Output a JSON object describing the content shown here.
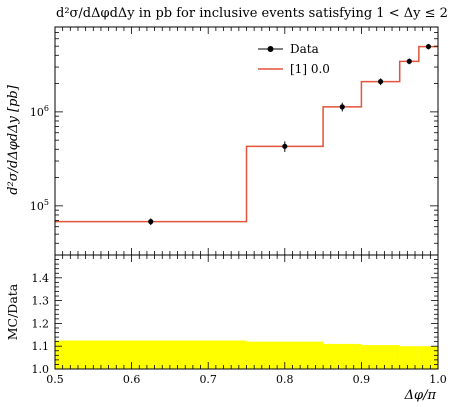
{
  "chart_data": [
    {
      "type": "line",
      "title": "d²σ/dΔφdΔy in pb for inclusive events satisfying 1 < Δy ≤ 2",
      "ylabel": "d²σ/dΔφdΔy [pb]",
      "xlim": [
        0.5,
        1.0
      ],
      "ylim": [
        30000,
        8000000
      ],
      "yscale": "log",
      "y_ticks": [
        {
          "value": 100000,
          "base": "10",
          "exp": "5"
        },
        {
          "value": 1000000,
          "base": "10",
          "exp": "6"
        }
      ],
      "legend_position": "top-right",
      "series": [
        {
          "name": "Data",
          "style": "points-with-errorbars",
          "color": "#000000",
          "points": [
            {
              "x": 0.625,
              "y": 68000,
              "err": 5500
            },
            {
              "x": 0.8,
              "y": 430000,
              "err": 55000
            },
            {
              "x": 0.875,
              "y": 1130000,
              "err": 120000
            },
            {
              "x": 0.925,
              "y": 2100000,
              "err": 170000
            },
            {
              "x": 0.9625,
              "y": 3450000,
              "err": 240000
            },
            {
              "x": 0.9875,
              "y": 4950000,
              "err": 330000
            }
          ]
        },
        {
          "name": "[1] 0.0",
          "style": "step",
          "color": "#e4533a",
          "bins": [
            {
              "x0": 0.5,
              "x1": 0.75,
              "y": 68000
            },
            {
              "x0": 0.75,
              "x1": 0.85,
              "y": 430000
            },
            {
              "x0": 0.85,
              "x1": 0.9,
              "y": 1130000
            },
            {
              "x0": 0.9,
              "x1": 0.95,
              "y": 2100000
            },
            {
              "x0": 0.95,
              "x1": 0.975,
              "y": 3450000
            },
            {
              "x0": 0.975,
              "x1": 1.0,
              "y": 4950000
            }
          ]
        }
      ]
    },
    {
      "type": "area",
      "ylabel": "MC/Data",
      "xlabel": "Δφ/π",
      "xlim": [
        0.5,
        1.0
      ],
      "ylim": [
        1.0,
        1.5
      ],
      "x_ticks": [
        "0.5",
        "0.6",
        "0.7",
        "0.8",
        "0.9",
        "1.0"
      ],
      "y_ticks": [
        "1.0",
        "1.1",
        "1.2",
        "1.3",
        "1.4"
      ],
      "band_color": "#ffff00",
      "band": [
        {
          "x0": 0.5,
          "x1": 0.75,
          "lo": 1.0,
          "hi": 1.125
        },
        {
          "x0": 0.75,
          "x1": 0.85,
          "lo": 1.0,
          "hi": 1.12
        },
        {
          "x0": 0.85,
          "x1": 0.9,
          "lo": 1.0,
          "hi": 1.11
        },
        {
          "x0": 0.9,
          "x1": 0.95,
          "lo": 1.0,
          "hi": 1.105
        },
        {
          "x0": 0.95,
          "x1": 0.975,
          "lo": 1.0,
          "hi": 1.1
        },
        {
          "x0": 0.975,
          "x1": 1.0,
          "lo": 1.0,
          "hi": 1.1
        }
      ]
    }
  ]
}
